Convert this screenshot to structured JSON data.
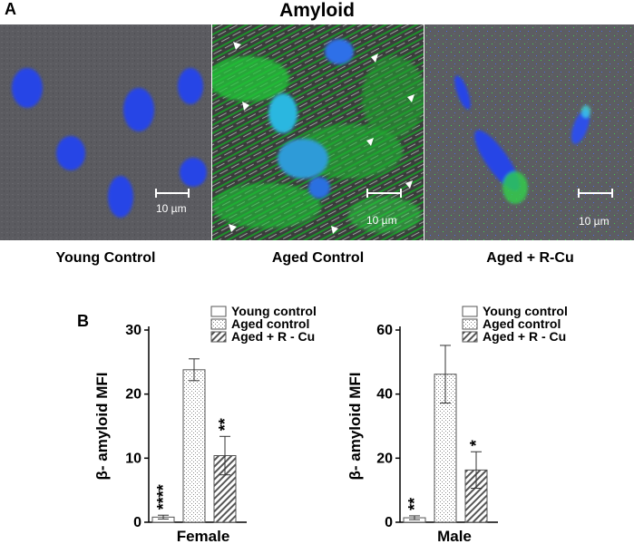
{
  "panels": {
    "a": "A",
    "b": "B"
  },
  "title": "Amyloid",
  "micrographs": [
    {
      "caption": "Young Control",
      "scale": "10 µm"
    },
    {
      "caption": "Aged Control",
      "scale": "10 µm"
    },
    {
      "caption": "Aged + R-Cu",
      "scale": "10 µm"
    }
  ],
  "colors": {
    "dapi": "#2545e6",
    "amyloid": "#2edc3c",
    "background": "#5a5a5e"
  },
  "chart_data": [
    {
      "type": "bar",
      "categories": [
        "Young control",
        "Aged control",
        "Aged + R - Cu"
      ],
      "xlabel": "Female",
      "ylabel": "β- amyloid MFI",
      "ylim": [
        0,
        30
      ],
      "yticks": [
        0,
        10,
        20,
        30
      ],
      "values": [
        0.8,
        23.8,
        10.4
      ],
      "errors": [
        0.3,
        1.7,
        3.0
      ],
      "significance": [
        "****",
        "",
        "**"
      ],
      "legend": [
        "Young control",
        "Aged control",
        "Aged + R - Cu"
      ]
    },
    {
      "type": "bar",
      "categories": [
        "Young control",
        "Aged control",
        "Aged + R - Cu"
      ],
      "xlabel": "Male",
      "ylabel": "β- amyloid MFI",
      "ylim": [
        0,
        60
      ],
      "yticks": [
        0,
        20,
        40,
        60
      ],
      "values": [
        1.4,
        46.2,
        16.3
      ],
      "errors": [
        0.6,
        9.0,
        5.7
      ],
      "significance": [
        "**",
        "",
        "*"
      ],
      "legend": [
        "Young control",
        "Aged control",
        "Aged + R - Cu"
      ]
    }
  ]
}
